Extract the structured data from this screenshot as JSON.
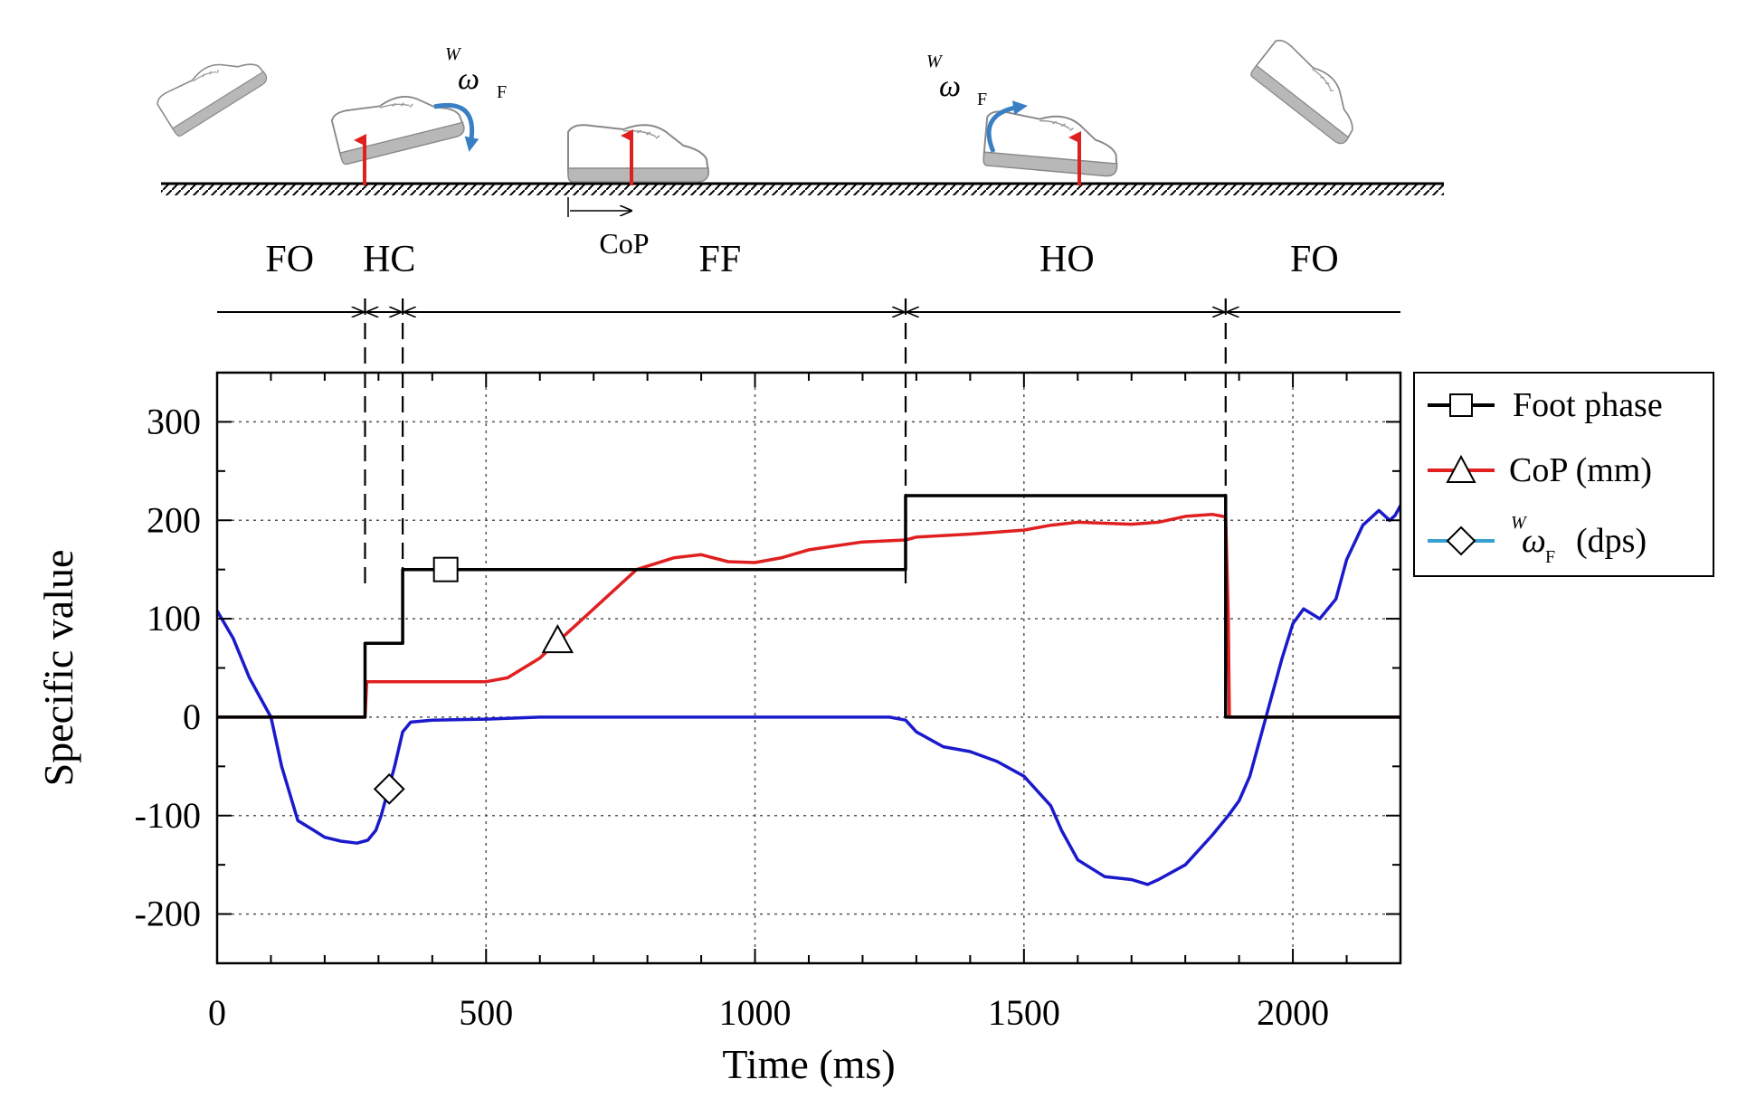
{
  "chart_data": {
    "type": "line",
    "xlabel": "Time (ms)",
    "ylabel": "Specific value",
    "xlim": [
      0,
      2200
    ],
    "ylim": [
      -250,
      350
    ],
    "xticks": [
      0,
      500,
      1000,
      1500,
      2000
    ],
    "yticks": [
      300,
      200,
      100,
      0,
      -100,
      -200
    ],
    "grid": true,
    "legend_position": "top-right",
    "legend": [
      {
        "label": "Foot phase",
        "marker": "square"
      },
      {
        "label": "CoP (mm)",
        "marker": "triangle"
      },
      {
        "label_prefix": "W",
        "label_symbol": "ω",
        "label_sub": "F",
        "label_suffix": "(dps)",
        "marker": "diamond"
      }
    ],
    "phase_boundaries_ms": [
      275,
      345,
      1280,
      1875
    ],
    "phase_labels": [
      "FO",
      "HC",
      "FF",
      "HO",
      "FO"
    ],
    "phase_label_times_ms": [
      135,
      320,
      935,
      1580,
      2040
    ],
    "diagram": {
      "cop_label": "CoP",
      "omega_symbol": "ω",
      "omega_super": "W",
      "omega_sub": "F"
    },
    "series": [
      {
        "name": "Foot phase",
        "color": "#000000",
        "step": true,
        "x": [
          0,
          275,
          275,
          345,
          345,
          1280,
          1280,
          1875,
          1875,
          2200
        ],
        "y": [
          0,
          0,
          75,
          75,
          150,
          150,
          225,
          225,
          0,
          0
        ],
        "marker_at": [
          425,
          150
        ]
      },
      {
        "name": "CoP (mm)",
        "color": "#e02020",
        "x": [
          0,
          275,
          278,
          500,
          540,
          600,
          700,
          780,
          850,
          900,
          950,
          1000,
          1050,
          1100,
          1150,
          1200,
          1280,
          1300,
          1400,
          1500,
          1550,
          1600,
          1650,
          1700,
          1750,
          1800,
          1850,
          1870,
          1875,
          1880,
          1882,
          2200
        ],
        "y": [
          0,
          0,
          36,
          36,
          40,
          60,
          110,
          150,
          162,
          165,
          158,
          157,
          162,
          170,
          174,
          178,
          180,
          183,
          186,
          190,
          195,
          198,
          197,
          196,
          198,
          204,
          206,
          204,
          203,
          100,
          0,
          0
        ],
        "marker_at": [
          633,
          77
        ]
      },
      {
        "name": "ωF (dps)",
        "color": "#1a1acc",
        "x": [
          0,
          30,
          60,
          90,
          100,
          120,
          150,
          180,
          200,
          230,
          260,
          280,
          295,
          305,
          315,
          330,
          345,
          360,
          400,
          500,
          600,
          700,
          800,
          900,
          1000,
          1100,
          1200,
          1250,
          1280,
          1300,
          1350,
          1400,
          1450,
          1500,
          1550,
          1570,
          1600,
          1650,
          1700,
          1730,
          1750,
          1800,
          1850,
          1880,
          1900,
          1920,
          1940,
          1960,
          1980,
          2000,
          2020,
          2050,
          2080,
          2100,
          2130,
          2160,
          2180,
          2190,
          2200
        ],
        "y": [
          108,
          80,
          40,
          10,
          0,
          -50,
          -105,
          -115,
          -122,
          -126,
          -128,
          -125,
          -115,
          -100,
          -80,
          -50,
          -15,
          -5,
          -3,
          -2,
          0,
          0,
          0,
          0,
          0,
          0,
          0,
          0,
          -3,
          -15,
          -30,
          -35,
          -45,
          -60,
          -90,
          -115,
          -145,
          -162,
          -165,
          -170,
          -165,
          -150,
          -120,
          -100,
          -85,
          -60,
          -20,
          20,
          60,
          95,
          110,
          100,
          120,
          160,
          195,
          210,
          200,
          205,
          215
        ],
        "marker_at": [
          320,
          -73
        ]
      }
    ]
  }
}
